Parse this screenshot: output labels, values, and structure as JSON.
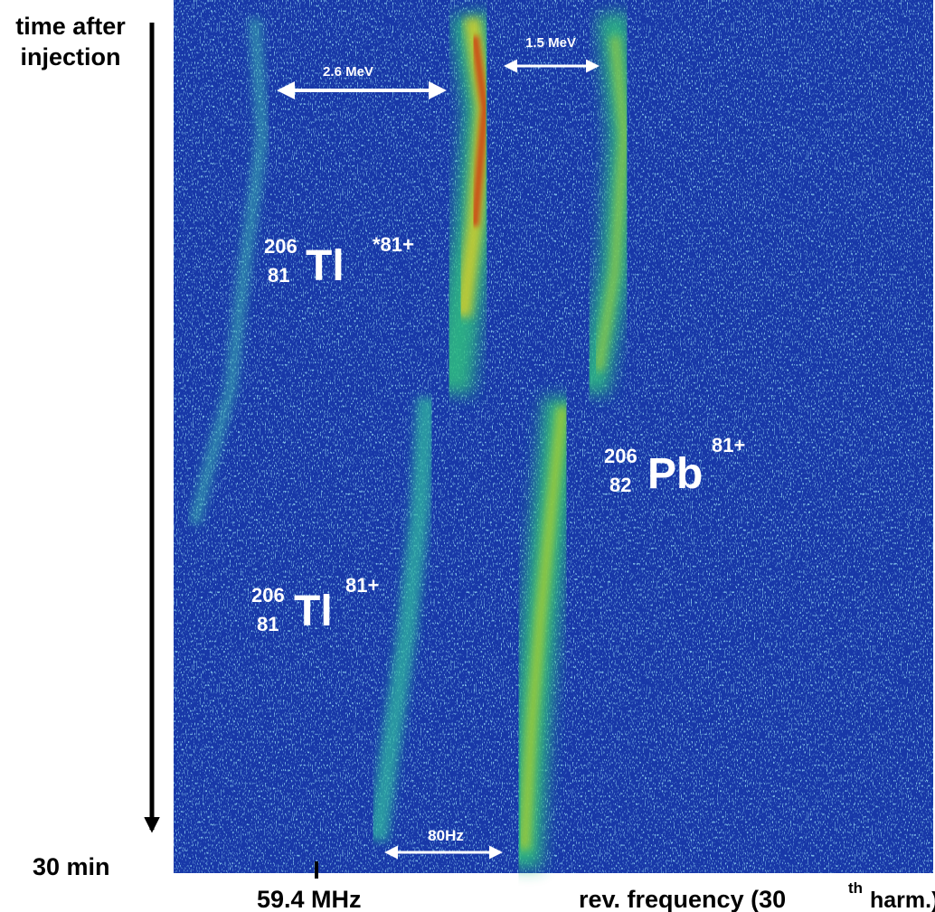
{
  "axes": {
    "y_label_line1": "time after",
    "y_label_line2": "injection",
    "y_end": "30 min",
    "x_tick": "59.4 MHz",
    "x_label_main": "rev. frequency (30",
    "x_label_sup": "th",
    "x_label_end": "harm.)"
  },
  "annotations": {
    "energy_gap_1": "2.6 MeV",
    "energy_gap_2": "1.5 MeV",
    "frequency_gap": "80Hz"
  },
  "ions": [
    {
      "mass": "206",
      "atomic_number": "81",
      "symbol": "Tl",
      "charge": "*81+"
    },
    {
      "mass": "206",
      "atomic_number": "81",
      "symbol": "Tl",
      "charge": "81+"
    },
    {
      "mass": "206",
      "atomic_number": "82",
      "symbol": "Pb",
      "charge": "81+"
    }
  ]
}
